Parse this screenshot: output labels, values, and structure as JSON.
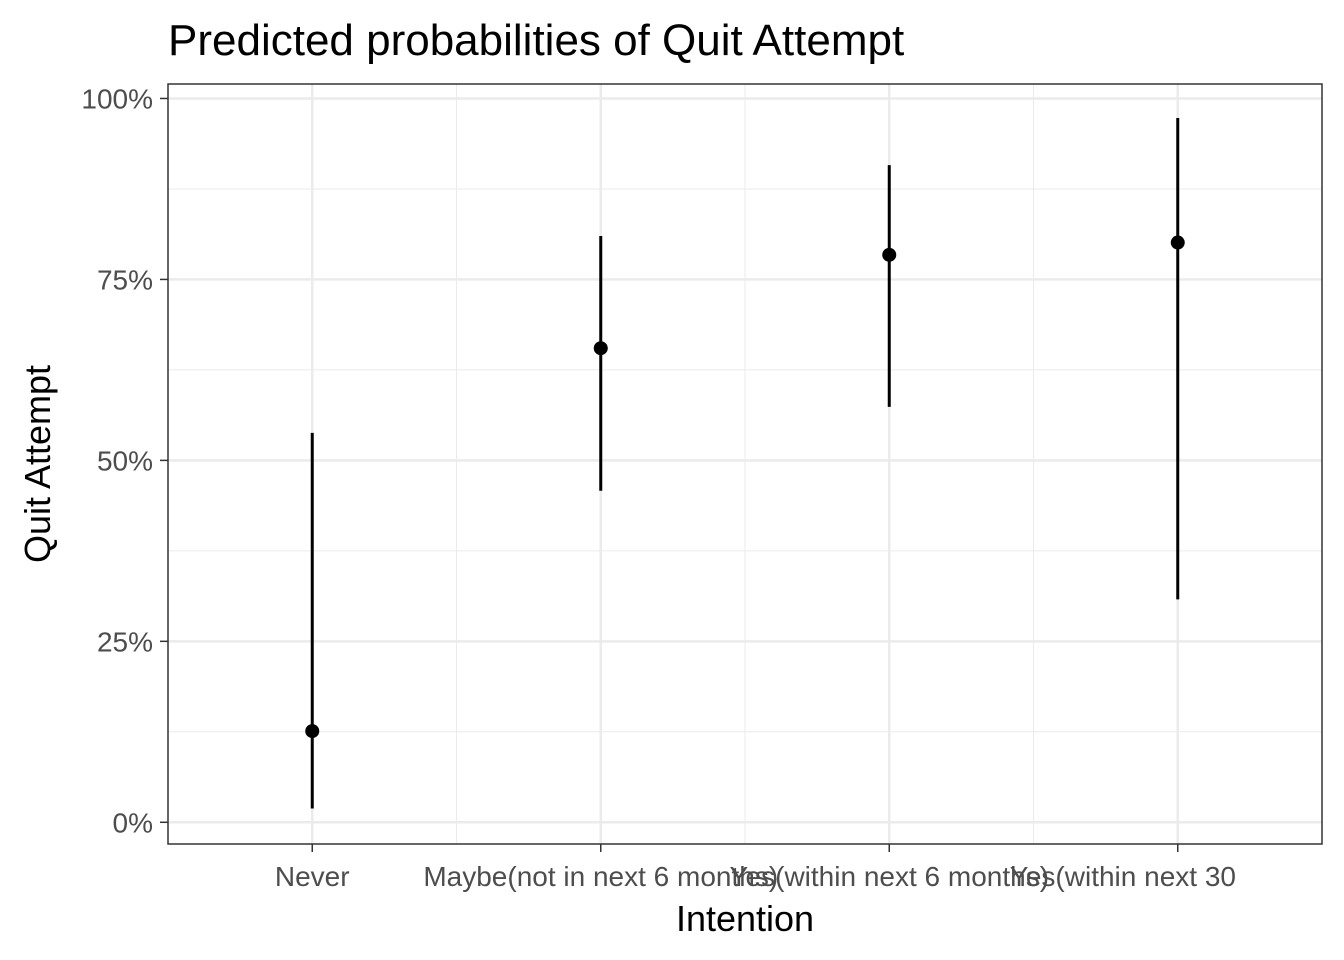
{
  "chart_data": {
    "type": "scatter",
    "title": "Predicted probabilities of Quit Attempt",
    "xlabel": "Intention",
    "ylabel": "Quit Attempt",
    "categories": [
      "Never",
      "Maybe(not in next 6 months)",
      "Yes(within next 6 months)",
      "Yes(within next 30"
    ],
    "values": [
      12.6,
      65.5,
      78.4,
      80.1
    ],
    "ci_lower": [
      1.9,
      45.8,
      57.4,
      30.8
    ],
    "ci_upper": [
      53.8,
      81.0,
      90.8,
      97.3
    ],
    "ylim": [
      -3,
      102
    ],
    "yticks": [
      0,
      25,
      50,
      75,
      100
    ],
    "ytick_labels": [
      "0%",
      "25%",
      "50%",
      "75%",
      "100%"
    ],
    "grid": true,
    "legend": "none",
    "colors": {
      "point": "#000000",
      "errorbar": "#000000",
      "grid": "#ebebeb",
      "panel_border": "#333333"
    }
  }
}
